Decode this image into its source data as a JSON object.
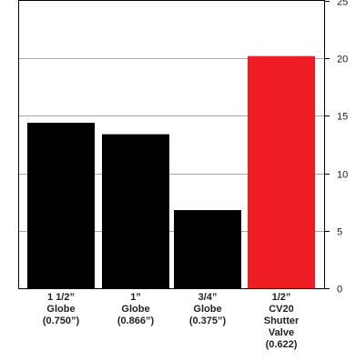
{
  "chart_data": {
    "type": "bar",
    "title": "",
    "xlabel": "",
    "ylabel": "",
    "ylim": [
      0,
      25
    ],
    "yticks": [
      0,
      5,
      10,
      15,
      20,
      25
    ],
    "yaxis_side": "right",
    "grid": true,
    "categories": [
      "1 1/2”\nGlobe\n(0.750”)",
      "1”\nGlobe\n(0.866”)",
      "3/4”\nGlobe\n(0.375”)",
      "1/2”\nCV20\nShutter\nValve\n(0.622)"
    ],
    "values": [
      14.4,
      13.4,
      6.8,
      20.2
    ],
    "colors": [
      "#000000",
      "#000000",
      "#000000",
      "#ee1c25"
    ]
  }
}
